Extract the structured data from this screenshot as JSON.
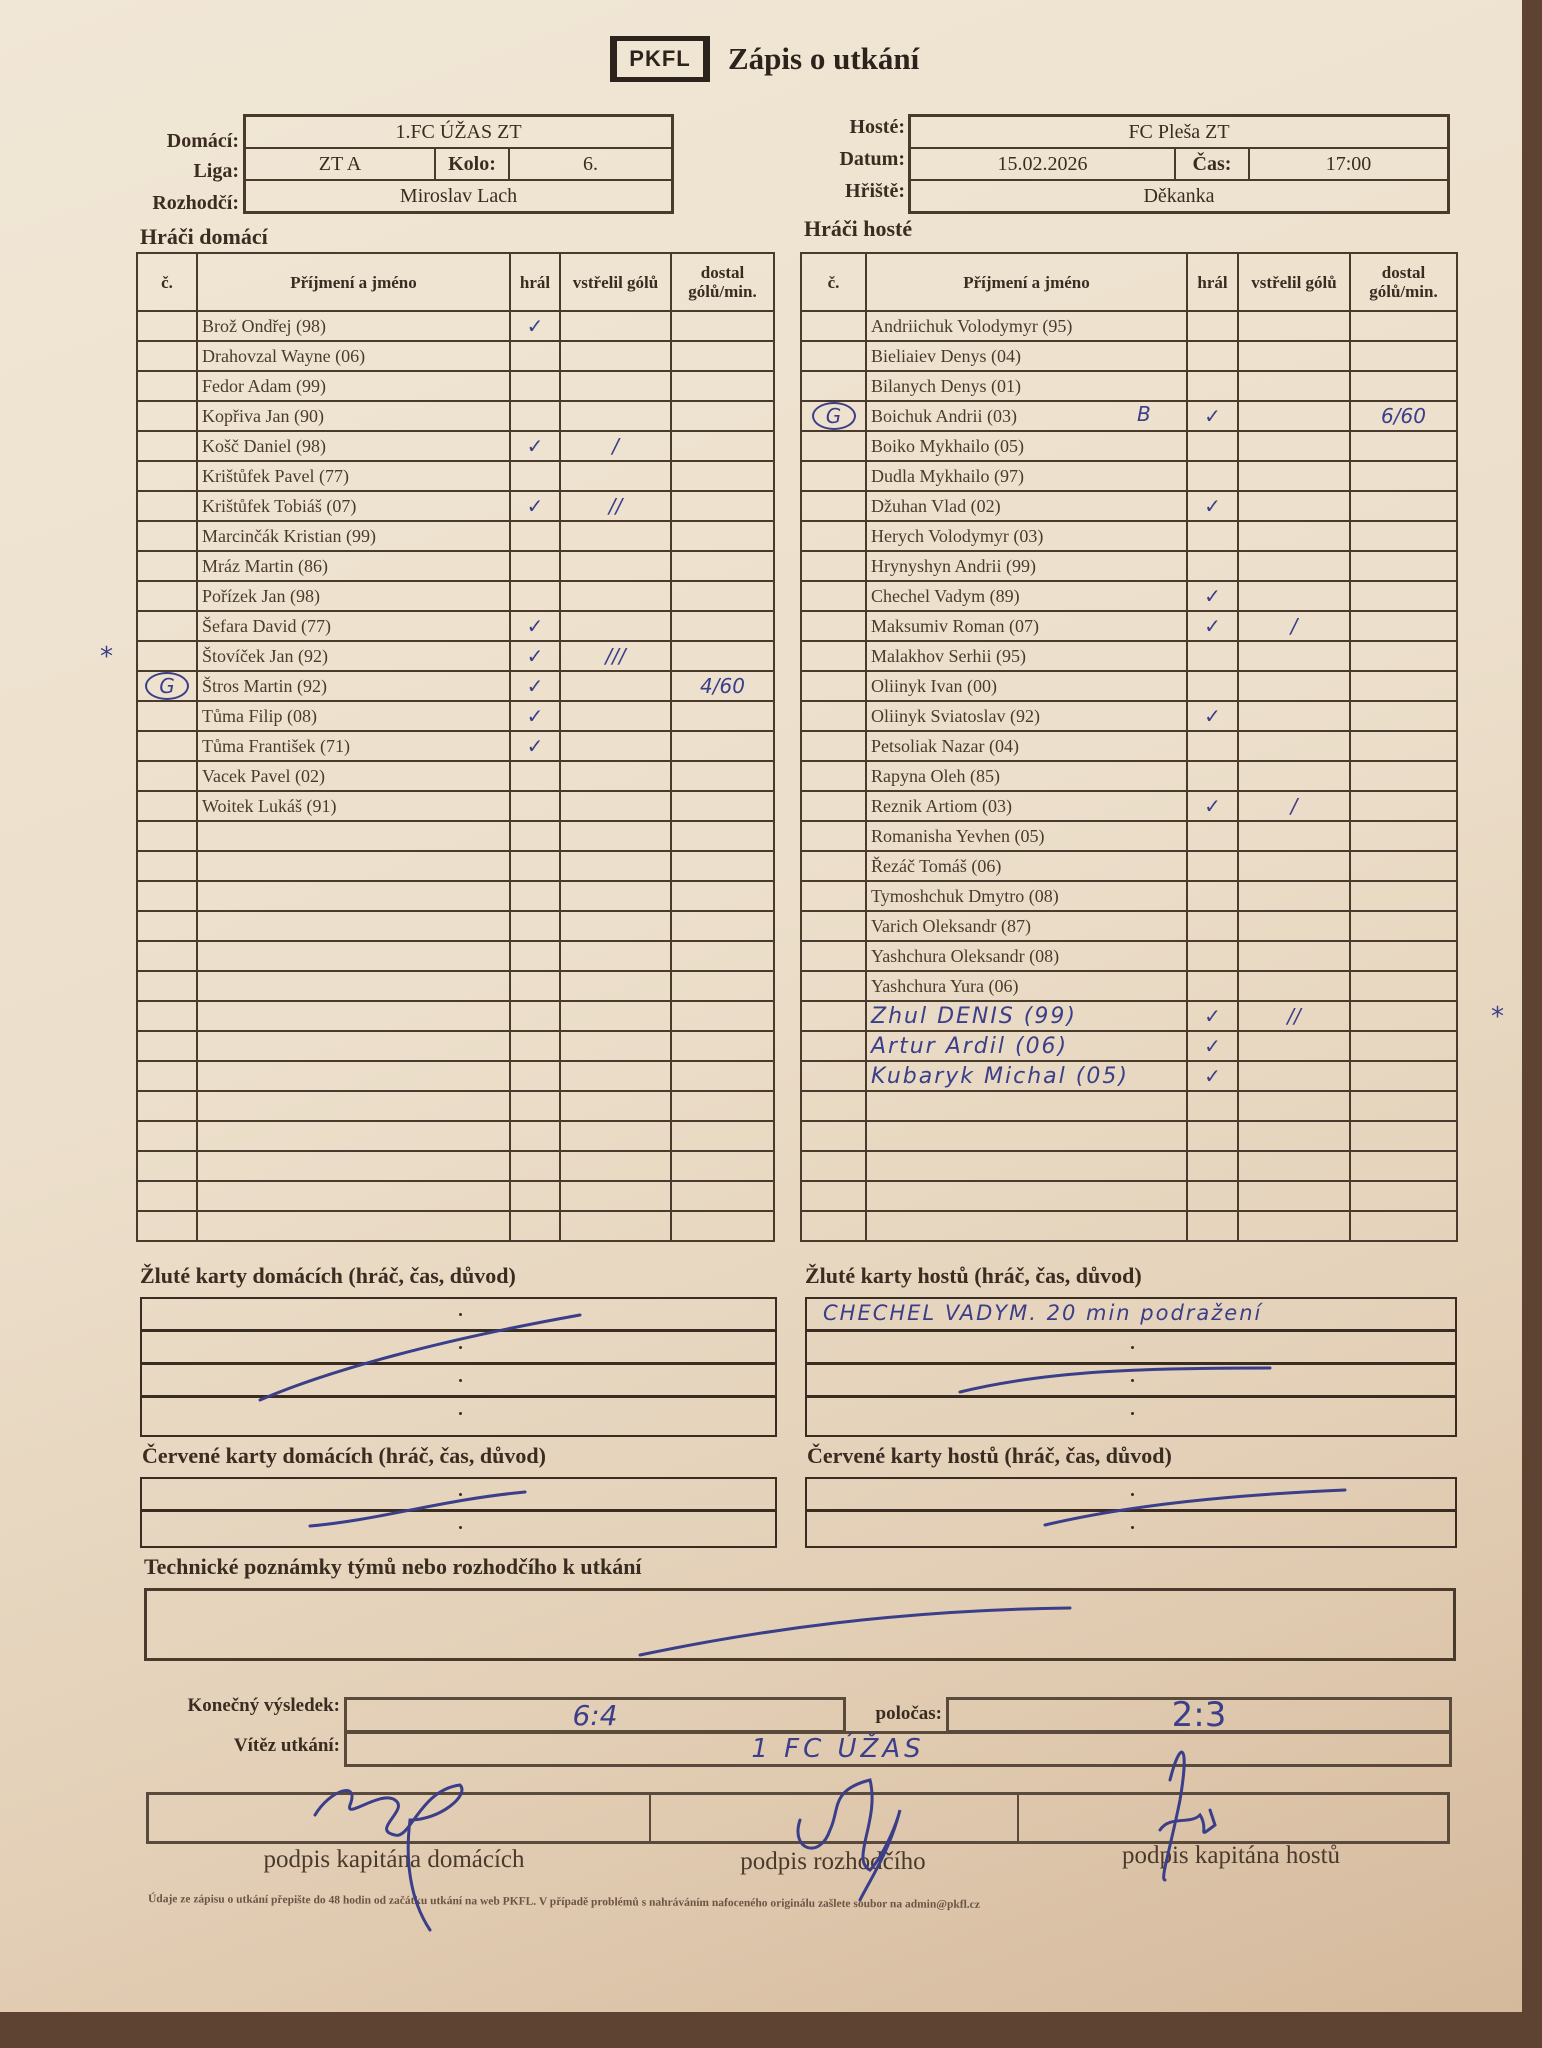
{
  "logo": "PKFL",
  "title": "Zápis o utkání",
  "home_info": {
    "home_label": "Domácí:",
    "home_value": "1.FC ÚŽAS ZT",
    "league_label": "Liga:",
    "league_value": "ZT A",
    "round_label": "Kolo:",
    "round_value": "6.",
    "referee_label": "Rozhodčí:",
    "referee_value": "Miroslav Lach"
  },
  "away_info": {
    "away_label": "Hosté:",
    "away_value": "FC Pleša ZT",
    "date_label": "Datum:",
    "date_value": "15.02.2026",
    "time_label": "Čas:",
    "time_value": "17:00",
    "pitch_label": "Hřiště:",
    "pitch_value": "Děkanka"
  },
  "columns": {
    "number": "č.",
    "name": "Příjmení a jméno",
    "played": "hrál",
    "goals": "vstřelil gólů",
    "conceded": "dostal gólů/min."
  },
  "home_players": {
    "heading": "Hráči domácí",
    "rows": [
      {
        "name": "Brož Ondřej (98)",
        "played": "✓"
      },
      {
        "name": "Drahovzal Wayne (06)"
      },
      {
        "name": "Fedor Adam (99)"
      },
      {
        "name": "Kopřiva Jan (90)"
      },
      {
        "name": "Košč Daniel (98)",
        "played": "✓",
        "goals": "/"
      },
      {
        "name": "Krištůfek Pavel (77)"
      },
      {
        "name": "Krištůfek Tobiáš (07)",
        "played": "✓",
        "goals": "//"
      },
      {
        "name": "Marcinčák Kristian (99)"
      },
      {
        "name": "Mráz Martin (86)"
      },
      {
        "name": "Pořízek Jan (98)"
      },
      {
        "name": "Šefara David (77)",
        "played": "✓"
      },
      {
        "name": "Štovíček Jan (92)",
        "played": "✓",
        "goals": "///",
        "margin_mark": "*"
      },
      {
        "name": "Štros Martin (92)",
        "number": "G",
        "played": "✓",
        "conceded": "4/60"
      },
      {
        "name": "Tůma Filip (08)",
        "played": "✓"
      },
      {
        "name": "Tůma František (71)",
        "played": "✓"
      },
      {
        "name": "Vacek Pavel (02)"
      },
      {
        "name": "Woitek Lukáš (91)"
      }
    ]
  },
  "away_players": {
    "heading": "Hráči hosté",
    "rows": [
      {
        "name": "Andriichuk Volodymyr (95)"
      },
      {
        "name": "Bieliaiev Denys (04)"
      },
      {
        "name": "Bilanych Denys (01)"
      },
      {
        "name": "Boichuk Andrii (03)",
        "number": "G",
        "note": "B",
        "played": "✓",
        "conceded": "6/60"
      },
      {
        "name": "Boiko Mykhailo (05)"
      },
      {
        "name": "Dudla Mykhailo (97)"
      },
      {
        "name": "Džuhan Vlad (02)",
        "played": "✓"
      },
      {
        "name": "Herych Volodymyr (03)"
      },
      {
        "name": "Hrynyshyn Andrii (99)"
      },
      {
        "name": "Chechel Vadym (89)",
        "played": "✓"
      },
      {
        "name": "Maksumiv Roman (07)",
        "played": "✓",
        "goals": "/"
      },
      {
        "name": "Malakhov Serhii (95)"
      },
      {
        "name": "Oliinyk Ivan (00)"
      },
      {
        "name": "Oliinyk Sviatoslav (92)",
        "played": "✓"
      },
      {
        "name": "Petsoliak Nazar (04)"
      },
      {
        "name": "Rapyna Oleh (85)"
      },
      {
        "name": "Reznik Artiom (03)",
        "played": "✓",
        "goals": "/"
      },
      {
        "name": "Romanisha Yevhen (05)"
      },
      {
        "name": "Řezáč Tomáš (06)"
      },
      {
        "name": "Tymoshchuk Dmytro (08)"
      },
      {
        "name": "Varich Oleksandr (87)"
      },
      {
        "name": "Yashchura Oleksandr (08)"
      },
      {
        "name": "Yashchura Yura (06)"
      }
    ],
    "handwritten_rows": [
      {
        "name": "Zhul DENIS (99)",
        "played": "✓",
        "goals": "//",
        "margin_mark": "*"
      },
      {
        "name": "Artur Ardil (06)",
        "played": "✓"
      },
      {
        "name": "Kubaryk Michal (05)",
        "played": "✓"
      }
    ]
  },
  "yellow_home": {
    "label": "Žluté karty domácích (hráč, čas, důvod)",
    "entries": []
  },
  "yellow_away": {
    "label": "Žluté karty hostů (hráč, čas, důvod)",
    "entries": [
      "CHECHEL VADYM. 20 min podražení"
    ]
  },
  "red_home": {
    "label": "Červené karty domácích (hráč, čas, důvod)",
    "entries": []
  },
  "red_away": {
    "label": "Červené karty hostů (hráč, čas, důvod)",
    "entries": []
  },
  "notes": {
    "label": "Technické poznámky týmů nebo rozhodčího k utkání",
    "value": ""
  },
  "result": {
    "final_label": "Konečný výsledek:",
    "final_value": "6:4",
    "half_label": "poločas:",
    "half_value": "2:3",
    "winner_label": "Vítěz utkání:",
    "winner_value": "1 FC ÚŽAS"
  },
  "signatures": {
    "home_captain": "podpis kapitána domácích",
    "referee": "podpis rozhodčího",
    "away_captain": "podpis kapitána hostů"
  },
  "footer": "Údaje ze zápisu o utkání přepište do 48 hodin od začátku utkání na web PKFL. V případě problémů s nahráváním nafoceného originálu zašlete soubor na admin@pkfl.cz",
  "colors": {
    "ink": "#3b3e88",
    "print": "#3a2c20",
    "paper": "#ecdfcb"
  }
}
